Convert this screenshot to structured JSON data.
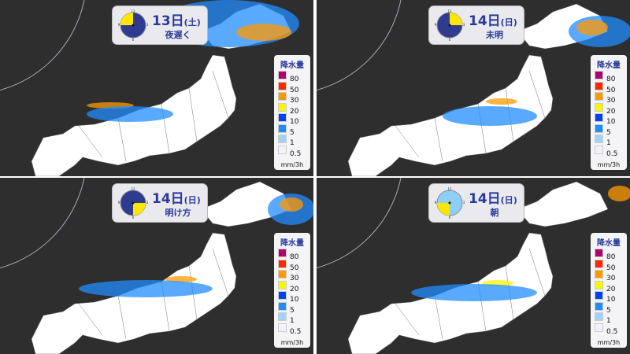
{
  "panels": [
    {
      "date": "13日",
      "weekday": "(土)",
      "time_label": "夜遅く",
      "clock_start_hour": 9,
      "dial_color": "#2f3b8f"
    },
    {
      "date": "14日",
      "weekday": "(日)",
      "time_label": "未明",
      "clock_start_hour": 0,
      "dial_color": "#2f3b8f"
    },
    {
      "date": "14日",
      "weekday": "(日)",
      "time_label": "明け方",
      "clock_start_hour": 3,
      "dial_color": "#2f3b8f"
    },
    {
      "date": "14日",
      "weekday": "(日)",
      "time_label": "朝",
      "clock_start_hour": 6,
      "dial_color": "#8ecff5"
    }
  ],
  "clock_numbers": [
    "12",
    "3",
    "6",
    "9"
  ],
  "legend": {
    "title": "降水量",
    "unit": "mm/3h",
    "levels": [
      {
        "label": "80",
        "color": "#b0006e"
      },
      {
        "label": "50",
        "color": "#ff2800"
      },
      {
        "label": "30",
        "color": "#ff9900"
      },
      {
        "label": "20",
        "color": "#faf500"
      },
      {
        "label": "10",
        "color": "#0041ff"
      },
      {
        "label": "5",
        "color": "#218cff"
      },
      {
        "label": "1",
        "color": "#a0d2ff"
      },
      {
        "label": "0.5",
        "color": "#f2f2ff"
      }
    ]
  },
  "colors": {
    "sea": "#2e2e2e",
    "land": "#ffffff",
    "clock_fill": "#ffe600"
  }
}
